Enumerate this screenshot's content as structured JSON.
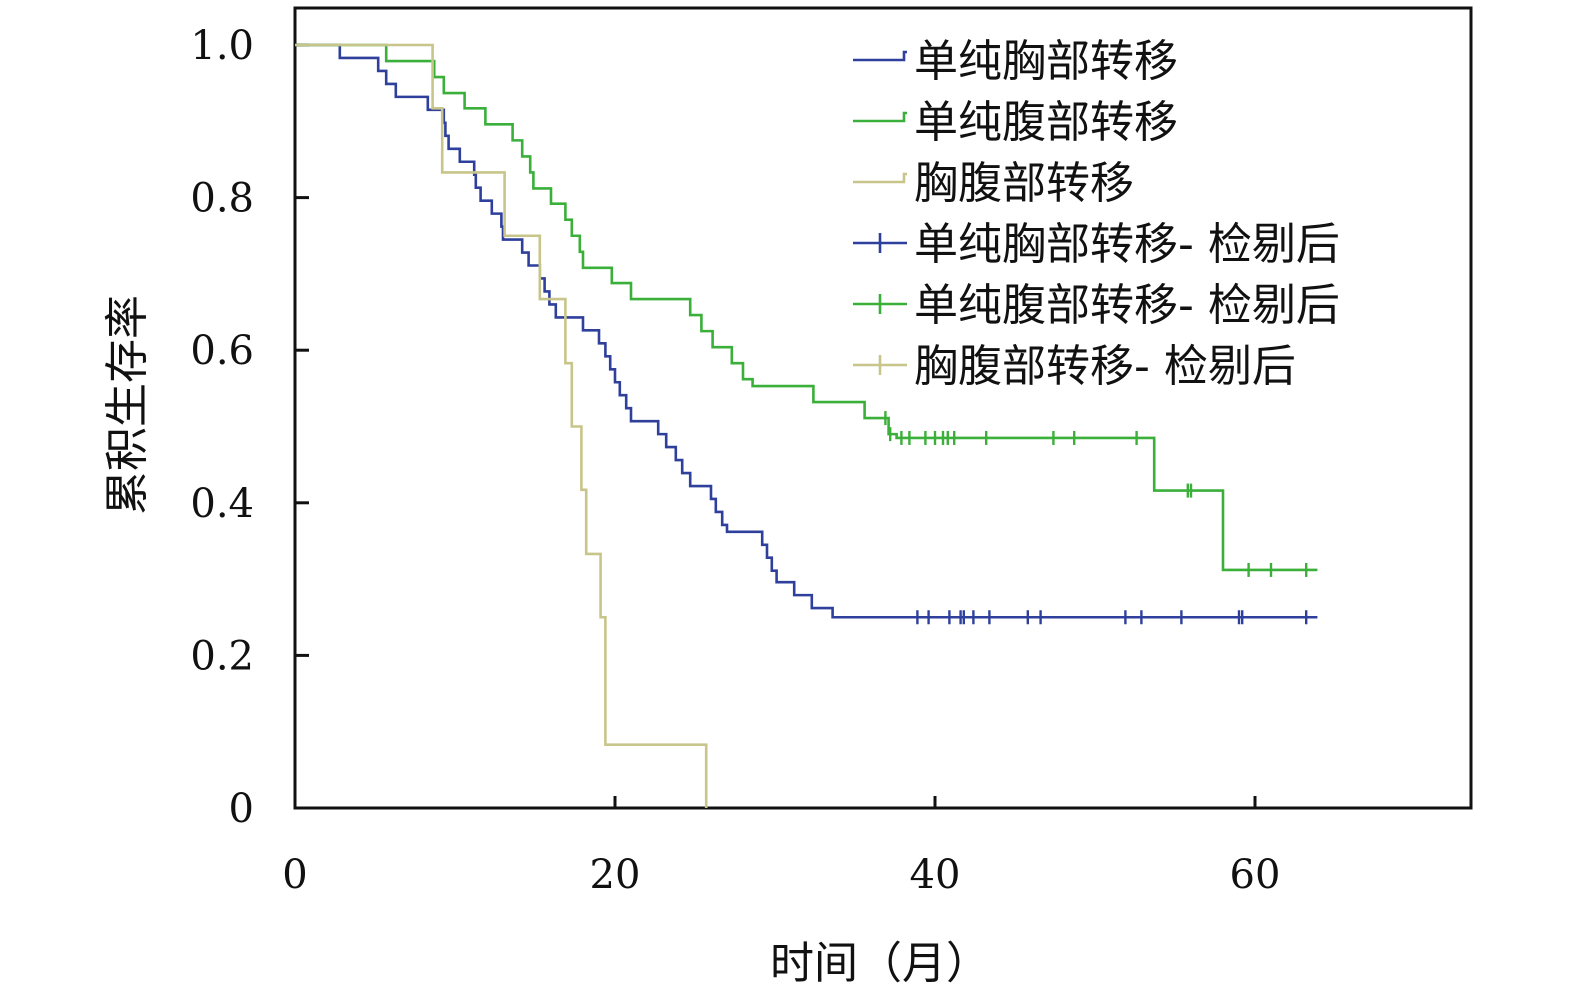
{
  "chart_data": {
    "type": "line",
    "subtype": "kaplan-meier",
    "xlabel": "时间（月）",
    "ylabel": "累积生存率",
    "xlim": [
      0,
      74
    ],
    "ylim": [
      0,
      1.0
    ],
    "x_ticks": [
      0,
      20,
      40,
      60
    ],
    "x_tick_labels": [
      "0",
      "20",
      "40",
      "60"
    ],
    "y_ticks": [
      0,
      0.2,
      0.4,
      0.6,
      0.8,
      1.0
    ],
    "y_tick_labels": [
      "0",
      "0.2",
      "0.4",
      "0.6",
      "0.8",
      "1.0"
    ],
    "grid": false,
    "legend_position": "top-right",
    "series": [
      {
        "name": "单纯胸部转移",
        "censor_name": "单纯胸部转移- 检剔后",
        "color": "#2e3f9c",
        "steps": [
          [
            0,
            1.0
          ],
          [
            2.8,
            0.983
          ],
          [
            5.2,
            0.966
          ],
          [
            5.7,
            0.949
          ],
          [
            6.3,
            0.932
          ],
          [
            8.3,
            0.915
          ],
          [
            9.3,
            0.898
          ],
          [
            9.4,
            0.881
          ],
          [
            9.6,
            0.864
          ],
          [
            10.3,
            0.847
          ],
          [
            11.2,
            0.83
          ],
          [
            11.3,
            0.813
          ],
          [
            11.6,
            0.796
          ],
          [
            12.3,
            0.779
          ],
          [
            12.9,
            0.762
          ],
          [
            13.0,
            0.745
          ],
          [
            14.2,
            0.728
          ],
          [
            14.6,
            0.711
          ],
          [
            15.3,
            0.694
          ],
          [
            15.6,
            0.677
          ],
          [
            15.9,
            0.66
          ],
          [
            16.3,
            0.643
          ],
          [
            18.0,
            0.626
          ],
          [
            19.0,
            0.609
          ],
          [
            19.4,
            0.592
          ],
          [
            19.7,
            0.575
          ],
          [
            20.0,
            0.558
          ],
          [
            20.3,
            0.541
          ],
          [
            20.7,
            0.524
          ],
          [
            21.0,
            0.507
          ],
          [
            22.7,
            0.49
          ],
          [
            23.2,
            0.473
          ],
          [
            23.8,
            0.456
          ],
          [
            24.2,
            0.439
          ],
          [
            24.7,
            0.422
          ],
          [
            26.0,
            0.405
          ],
          [
            26.3,
            0.388
          ],
          [
            26.7,
            0.371
          ],
          [
            27.0,
            0.362
          ],
          [
            29.2,
            0.345
          ],
          [
            29.5,
            0.328
          ],
          [
            29.8,
            0.311
          ],
          [
            30.1,
            0.296
          ],
          [
            31.2,
            0.279
          ],
          [
            32.3,
            0.262
          ],
          [
            33.6,
            0.25
          ],
          [
            63.9,
            0.25
          ]
        ],
        "censor_times": [
          38.9,
          39.6,
          40.9,
          41.6,
          41.8,
          42.4,
          43.4,
          45.8,
          46.6,
          51.9,
          52.9,
          55.4,
          59.0,
          59.2,
          63.2
        ]
      },
      {
        "name": "单纯腹部转移",
        "censor_name": "单纯腹部转移- 检剔后",
        "color": "#3aaf3a",
        "steps": [
          [
            0,
            1.0
          ],
          [
            5.7,
            0.979
          ],
          [
            8.7,
            0.958
          ],
          [
            9.3,
            0.937
          ],
          [
            10.6,
            0.917
          ],
          [
            11.9,
            0.896
          ],
          [
            13.6,
            0.875
          ],
          [
            14.2,
            0.854
          ],
          [
            14.7,
            0.833
          ],
          [
            14.9,
            0.812
          ],
          [
            16.0,
            0.792
          ],
          [
            16.9,
            0.771
          ],
          [
            17.3,
            0.75
          ],
          [
            17.8,
            0.729
          ],
          [
            18.0,
            0.708
          ],
          [
            19.8,
            0.688
          ],
          [
            21.0,
            0.667
          ],
          [
            24.7,
            0.646
          ],
          [
            25.4,
            0.625
          ],
          [
            26.1,
            0.604
          ],
          [
            27.3,
            0.583
          ],
          [
            28.0,
            0.562
          ],
          [
            28.6,
            0.553
          ],
          [
            32.4,
            0.532
          ],
          [
            35.6,
            0.511
          ],
          [
            37.1,
            0.49
          ],
          [
            37.6,
            0.485
          ],
          [
            53.7,
            0.416
          ],
          [
            58.0,
            0.312
          ],
          [
            63.9,
            0.312
          ]
        ],
        "censor_times": [
          36.9,
          37.2,
          37.9,
          38.4,
          39.4,
          40.0,
          40.5,
          40.8,
          41.2,
          43.2,
          47.4,
          48.7,
          52.6,
          55.8,
          56.0,
          59.6,
          61.0,
          63.2
        ]
      },
      {
        "name": "胸腹部转移",
        "censor_name": "胸腹部转移- 检剔后",
        "color": "#c8c58a",
        "steps": [
          [
            0,
            1.0
          ],
          [
            8.6,
            0.917
          ],
          [
            9.2,
            0.833
          ],
          [
            13.1,
            0.75
          ],
          [
            15.3,
            0.667
          ],
          [
            16.9,
            0.583
          ],
          [
            17.3,
            0.5
          ],
          [
            17.9,
            0.417
          ],
          [
            18.2,
            0.333
          ],
          [
            19.1,
            0.25
          ],
          [
            19.4,
            0.083
          ],
          [
            25.7,
            0.0
          ]
        ],
        "censor_times": []
      }
    ]
  }
}
